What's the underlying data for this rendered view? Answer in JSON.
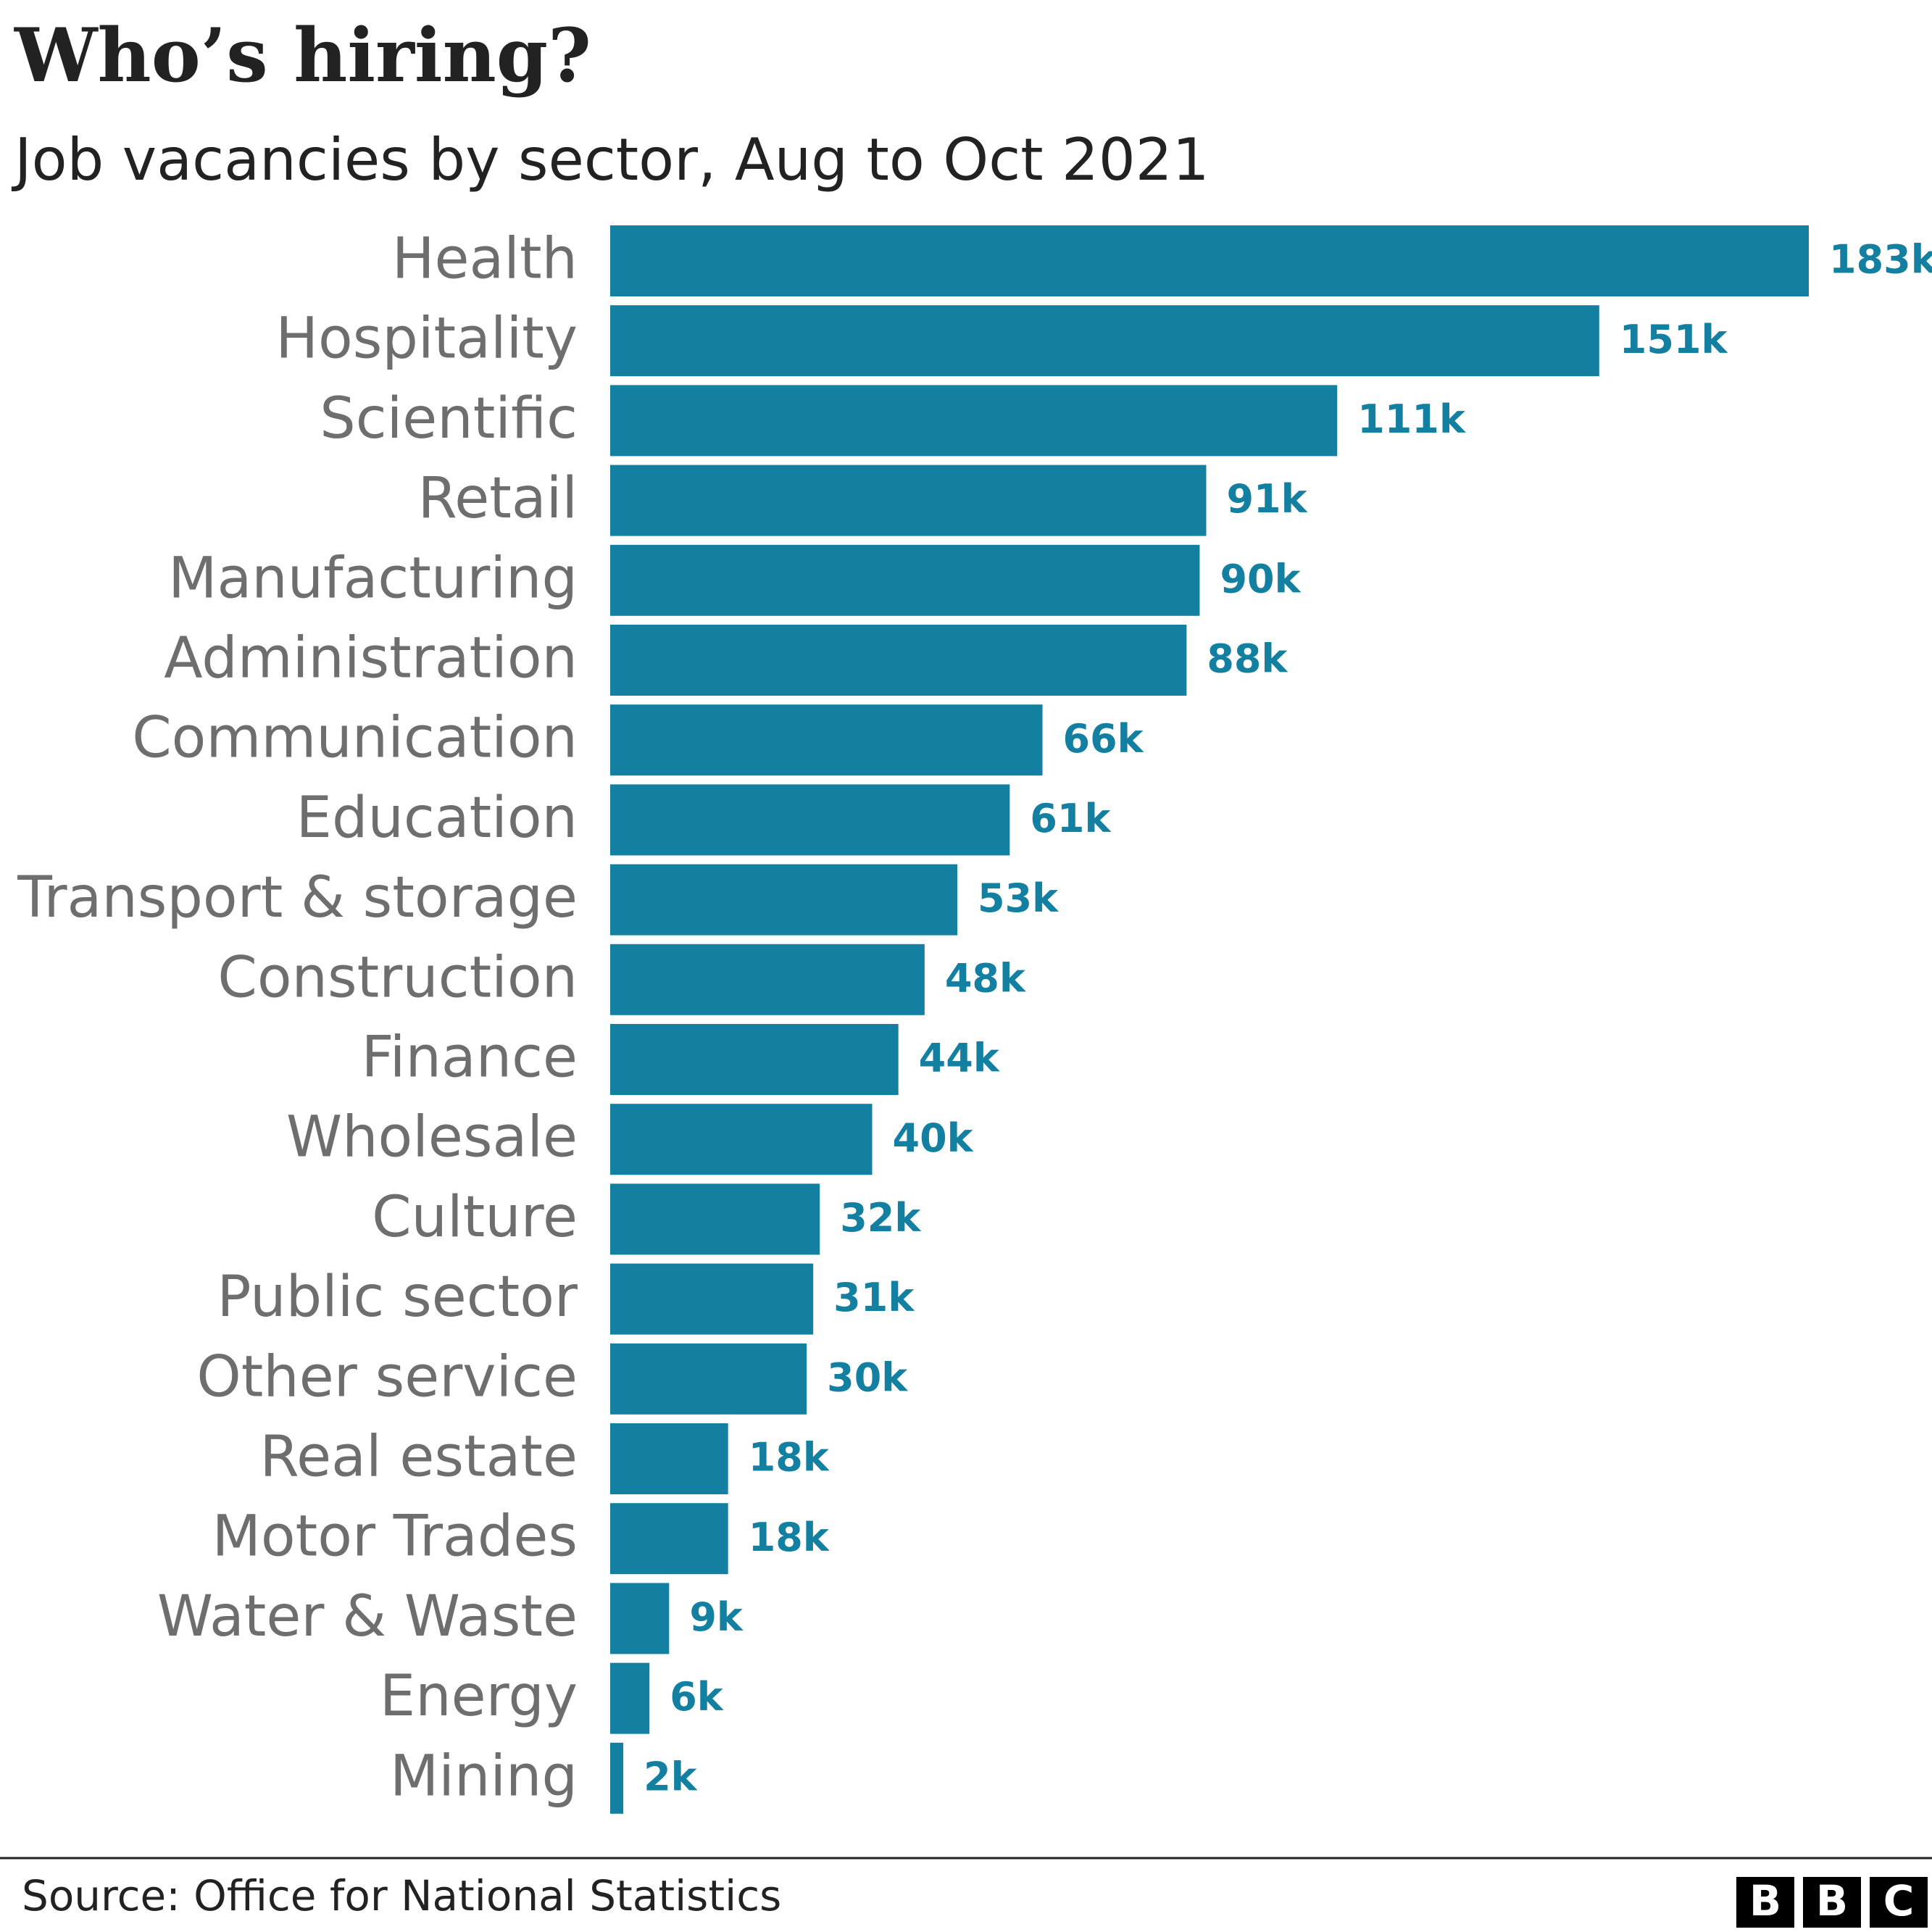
{
  "chart_data": {
    "type": "bar",
    "orientation": "horizontal",
    "title": "Who’s hiring?",
    "subtitle": "Job vacancies by sector, Aug to Oct 2021",
    "categories": [
      "Health",
      "Hospitality",
      "Scientific",
      "Retail",
      "Manufacturing",
      "Administration",
      "Communication",
      "Education",
      "Transport & storage",
      "Construction",
      "Finance",
      "Wholesale",
      "Culture",
      "Public sector",
      "Other service",
      "Real estate",
      "Motor Trades",
      "Water & Waste",
      "Energy",
      "Mining"
    ],
    "values": [
      183,
      151,
      111,
      91,
      90,
      88,
      66,
      61,
      53,
      48,
      44,
      40,
      32,
      31,
      30,
      18,
      18,
      9,
      6,
      2
    ],
    "value_labels": [
      "183k",
      "151k",
      "111k",
      "91k",
      "90k",
      "88k",
      "66k",
      "61k",
      "53k",
      "48k",
      "44k",
      "40k",
      "32k",
      "31k",
      "30k",
      "18k",
      "18k",
      "9k",
      "6k",
      "2k"
    ],
    "color": "#1380a1",
    "source": "Source: Office for National Statistics",
    "logo": [
      "B",
      "B",
      "C"
    ]
  }
}
